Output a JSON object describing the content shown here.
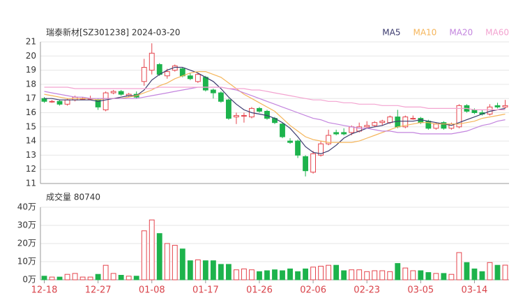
{
  "chart_data": {
    "type": "candlestick",
    "title": "瑞泰新材[SZ301238] 2024-03-20",
    "volume_title": "成交量 80740",
    "legend": "top-right",
    "grid": true,
    "up_color": "#e5444c",
    "down_color": "#1db34c",
    "categories": [
      "12-18",
      null,
      null,
      null,
      null,
      null,
      null,
      "12-27",
      null,
      null,
      null,
      null,
      null,
      null,
      "01-08",
      null,
      null,
      null,
      null,
      null,
      null,
      "01-17",
      null,
      null,
      null,
      null,
      null,
      null,
      "01-26",
      null,
      null,
      null,
      null,
      null,
      null,
      "02-06",
      null,
      null,
      null,
      null,
      null,
      null,
      "02-23",
      null,
      null,
      null,
      null,
      null,
      null,
      "03-05",
      null,
      null,
      null,
      null,
      null,
      null,
      "03-14",
      null,
      null,
      null,
      null
    ],
    "ohlc": [
      [
        17.0,
        17.1,
        16.7,
        16.8
      ],
      [
        16.8,
        16.9,
        16.7,
        16.8
      ],
      [
        16.8,
        16.9,
        16.5,
        16.6
      ],
      [
        16.6,
        17.0,
        16.5,
        16.9
      ],
      [
        16.9,
        17.2,
        16.8,
        17.1
      ],
      [
        17.0,
        17.1,
        16.9,
        17.0
      ],
      [
        17.0,
        17.2,
        16.9,
        17.0
      ],
      [
        16.9,
        17.0,
        16.2,
        16.4
      ],
      [
        16.2,
        17.5,
        16.1,
        17.4
      ],
      [
        17.4,
        17.6,
        17.3,
        17.5
      ],
      [
        17.5,
        17.6,
        17.2,
        17.3
      ],
      [
        17.2,
        17.4,
        17.1,
        17.3
      ],
      [
        17.3,
        17.5,
        17.0,
        17.1
      ],
      [
        18.2,
        19.8,
        17.9,
        19.2
      ],
      [
        19.0,
        20.9,
        18.7,
        20.2
      ],
      [
        19.4,
        19.5,
        18.6,
        18.7
      ],
      [
        18.6,
        19.1,
        18.4,
        18.9
      ],
      [
        19.0,
        19.4,
        18.9,
        19.3
      ],
      [
        19.1,
        19.2,
        18.5,
        18.6
      ],
      [
        18.6,
        18.8,
        18.3,
        18.4
      ],
      [
        18.2,
        18.8,
        18.1,
        18.7
      ],
      [
        18.5,
        18.6,
        17.5,
        17.6
      ],
      [
        17.6,
        17.7,
        17.0,
        17.4
      ],
      [
        17.4,
        17.5,
        16.7,
        16.8
      ],
      [
        16.9,
        17.0,
        15.5,
        15.6
      ],
      [
        15.7,
        16.0,
        15.2,
        15.8
      ],
      [
        15.8,
        16.0,
        15.3,
        15.8
      ],
      [
        15.7,
        16.4,
        15.6,
        16.3
      ],
      [
        16.3,
        16.4,
        16.0,
        16.1
      ],
      [
        16.1,
        16.2,
        15.5,
        15.6
      ],
      [
        15.6,
        15.7,
        15.2,
        15.3
      ],
      [
        15.2,
        15.3,
        14.2,
        14.3
      ],
      [
        14.0,
        14.2,
        13.8,
        13.9
      ],
      [
        14.0,
        14.1,
        12.8,
        13.0
      ],
      [
        12.9,
        13.0,
        11.5,
        11.9
      ],
      [
        11.8,
        13.3,
        11.7,
        13.1
      ],
      [
        13.0,
        14.0,
        12.9,
        13.8
      ],
      [
        13.8,
        14.8,
        13.7,
        14.4
      ],
      [
        14.6,
        14.8,
        14.4,
        14.5
      ],
      [
        14.6,
        14.9,
        14.4,
        14.5
      ],
      [
        14.6,
        15.1,
        14.4,
        15.0
      ],
      [
        14.7,
        15.3,
        14.6,
        15.0
      ],
      [
        15.0,
        15.4,
        14.9,
        15.1
      ],
      [
        15.1,
        15.4,
        15.0,
        15.3
      ],
      [
        15.3,
        15.5,
        15.1,
        15.4
      ],
      [
        15.3,
        15.8,
        15.2,
        15.7
      ],
      [
        15.7,
        16.2,
        14.9,
        15.0
      ],
      [
        15.0,
        15.8,
        14.9,
        15.7
      ],
      [
        15.6,
        15.8,
        15.5,
        15.6
      ],
      [
        15.6,
        15.7,
        15.2,
        15.3
      ],
      [
        15.4,
        15.5,
        14.8,
        14.9
      ],
      [
        14.9,
        15.3,
        14.8,
        15.2
      ],
      [
        15.3,
        15.4,
        14.8,
        14.9
      ],
      [
        14.9,
        15.3,
        14.8,
        15.2
      ],
      [
        15.0,
        16.6,
        14.9,
        16.5
      ],
      [
        16.5,
        16.6,
        16.0,
        16.1
      ],
      [
        16.2,
        16.3,
        15.9,
        16.0
      ],
      [
        16.0,
        16.2,
        15.8,
        15.9
      ],
      [
        15.9,
        16.6,
        15.8,
        16.4
      ],
      [
        16.5,
        16.7,
        16.3,
        16.4
      ],
      [
        16.4,
        16.9,
        16.3,
        16.5
      ]
    ],
    "volume": [
      20000,
      15000,
      15000,
      30000,
      35000,
      15000,
      15000,
      30000,
      80000,
      35000,
      25000,
      20000,
      20000,
      270000,
      330000,
      255000,
      200000,
      190000,
      170000,
      105000,
      110000,
      105000,
      105000,
      85000,
      85000,
      55000,
      60000,
      55000,
      45000,
      50000,
      55000,
      50000,
      60000,
      45000,
      60000,
      70000,
      75000,
      80000,
      80000,
      50000,
      55000,
      55000,
      45000,
      50000,
      50000,
      45000,
      90000,
      65000,
      50000,
      50000,
      40000,
      35000,
      35000,
      30000,
      150000,
      95000,
      60000,
      45000,
      95000,
      80000,
      80740
    ],
    "series": [
      {
        "name": "MA5",
        "color": "#3b3a6e",
        "values": [
          17.0,
          17.0,
          16.9,
          16.9,
          16.9,
          16.9,
          16.9,
          16.8,
          16.9,
          17.0,
          17.1,
          17.2,
          17.2,
          17.6,
          18.3,
          18.7,
          19.0,
          19.2,
          19.2,
          19.0,
          18.8,
          18.5,
          18.2,
          17.7,
          17.1,
          16.6,
          16.2,
          16.0,
          15.9,
          15.8,
          15.6,
          15.3,
          14.9,
          14.3,
          13.6,
          13.2,
          13.1,
          13.3,
          13.7,
          14.2,
          14.5,
          14.7,
          14.9,
          15.0,
          15.1,
          15.3,
          15.4,
          15.4,
          15.4,
          15.5,
          15.4,
          15.3,
          15.2,
          15.1,
          15.3,
          15.5,
          15.7,
          15.9,
          16.1,
          16.2,
          16.3
        ]
      },
      {
        "name": "MA10",
        "color": "#f5b55a",
        "values": [
          17.3,
          17.2,
          17.1,
          17.0,
          17.0,
          17.0,
          17.0,
          16.9,
          17.0,
          17.0,
          17.0,
          17.1,
          17.2,
          17.4,
          17.6,
          17.9,
          18.1,
          18.4,
          18.6,
          18.8,
          18.9,
          18.9,
          18.7,
          18.5,
          18.1,
          17.7,
          17.3,
          17.0,
          16.7,
          16.4,
          16.1,
          15.6,
          15.1,
          14.7,
          14.3,
          14.1,
          14.0,
          13.9,
          13.9,
          13.9,
          13.9,
          14.0,
          14.2,
          14.4,
          14.6,
          14.8,
          15.0,
          15.1,
          15.2,
          15.3,
          15.3,
          15.2,
          15.2,
          15.2,
          15.2,
          15.3,
          15.4,
          15.6,
          15.7,
          15.8,
          15.9
        ]
      },
      {
        "name": "MA20",
        "color": "#c384de",
        "values": [
          17.5,
          17.4,
          17.3,
          17.2,
          17.1,
          17.1,
          17.0,
          17.0,
          17.0,
          17.0,
          17.0,
          17.0,
          17.0,
          17.1,
          17.2,
          17.3,
          17.4,
          17.5,
          17.6,
          17.7,
          17.8,
          17.8,
          17.8,
          17.8,
          17.7,
          17.6,
          17.4,
          17.2,
          17.0,
          16.8,
          16.6,
          16.4,
          16.2,
          16.0,
          15.8,
          15.6,
          15.5,
          15.3,
          15.2,
          15.1,
          15.0,
          14.9,
          14.9,
          14.8,
          14.7,
          14.7,
          14.6,
          14.6,
          14.6,
          14.5,
          14.5,
          14.5,
          14.5,
          14.5,
          14.6,
          14.7,
          14.9,
          15.1,
          15.2,
          15.4,
          15.5
        ]
      },
      {
        "name": "MA60",
        "color": "#f3a3d0",
        "values": [
          17.8,
          17.8,
          17.8,
          17.8,
          17.7,
          17.7,
          17.7,
          17.7,
          17.7,
          17.7,
          17.7,
          17.7,
          17.7,
          17.7,
          17.7,
          17.8,
          17.8,
          17.8,
          17.8,
          17.8,
          17.8,
          17.8,
          17.8,
          17.8,
          17.7,
          17.7,
          17.7,
          17.6,
          17.6,
          17.5,
          17.4,
          17.3,
          17.2,
          17.1,
          17.0,
          16.9,
          16.9,
          16.8,
          16.8,
          16.7,
          16.7,
          16.6,
          16.6,
          16.6,
          16.5,
          16.5,
          16.5,
          16.4,
          16.4,
          16.4,
          16.3,
          16.3,
          16.3,
          16.3,
          16.3,
          16.3,
          16.2,
          16.2,
          16.2,
          16.2,
          16.2
        ]
      }
    ],
    "ylim": [
      11,
      21
    ],
    "yticks": [
      11,
      12,
      13,
      14,
      15,
      16,
      17,
      18,
      19,
      20,
      21
    ],
    "vlim": [
      0,
      400000
    ],
    "vticks": [
      {
        "value": 0,
        "label": "0万"
      },
      {
        "value": 100000,
        "label": "10万"
      },
      {
        "value": 200000,
        "label": "20万"
      },
      {
        "value": 300000,
        "label": "30万"
      },
      {
        "value": 400000,
        "label": "40万"
      }
    ]
  }
}
